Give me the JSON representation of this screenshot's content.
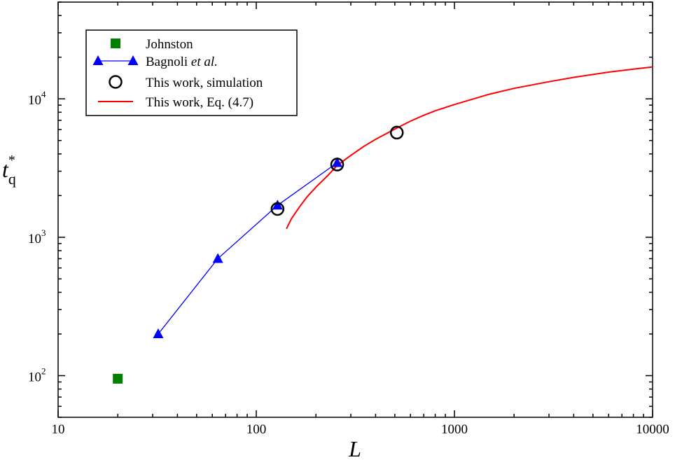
{
  "chart_data": {
    "type": "line",
    "xscale": "log",
    "yscale": "log",
    "xlim": [
      10,
      10000
    ],
    "ylim": [
      50,
      50000
    ],
    "xlabel": "L",
    "ylabel": {
      "main": "t",
      "sub": "q",
      "sup": "*"
    },
    "x_ticks": [
      {
        "value": 10,
        "label": "10"
      },
      {
        "value": 100,
        "label": "100"
      },
      {
        "value": 1000,
        "label": "1000"
      },
      {
        "value": 10000,
        "label": "10000"
      }
    ],
    "y_ticks": [
      {
        "value": 100,
        "base": "10",
        "exp": "2"
      },
      {
        "value": 1000,
        "base": "10",
        "exp": "3"
      },
      {
        "value": 10000,
        "base": "10",
        "exp": "4"
      }
    ],
    "grid": false,
    "legend_position": "top-left",
    "legend": [
      {
        "key": "johnston",
        "parts": [
          {
            "text": "Johnston",
            "italic": false
          }
        ]
      },
      {
        "key": "bagnoli",
        "parts": [
          {
            "text": "Bagnoli ",
            "italic": false
          },
          {
            "text": "et al.",
            "italic": true
          }
        ]
      },
      {
        "key": "sim",
        "parts": [
          {
            "text": "This work, simulation",
            "italic": false
          }
        ]
      },
      {
        "key": "eq",
        "parts": [
          {
            "text": "This work, Eq. (4.7)",
            "italic": false
          }
        ]
      }
    ],
    "series": [
      {
        "key": "johnston",
        "marker": "square",
        "color": "#008000",
        "line": false,
        "points": [
          [
            20,
            95
          ]
        ]
      },
      {
        "key": "bagnoli",
        "marker": "triangle",
        "color": "#0000ff",
        "line": true,
        "points": [
          [
            32,
            200
          ],
          [
            64,
            700
          ],
          [
            128,
            1700
          ],
          [
            256,
            3450
          ]
        ]
      },
      {
        "key": "sim",
        "marker": "circle",
        "color": "#000000",
        "line": false,
        "points": [
          [
            128,
            1600
          ],
          [
            256,
            3350
          ],
          [
            512,
            5700
          ]
        ]
      },
      {
        "key": "eq",
        "marker": "none",
        "color": "#ff0000",
        "line": true,
        "points": [
          [
            142,
            1150
          ],
          [
            150,
            1350
          ],
          [
            165,
            1650
          ],
          [
            180,
            1950
          ],
          [
            200,
            2300
          ],
          [
            230,
            2800
          ],
          [
            256,
            3300
          ],
          [
            300,
            3900
          ],
          [
            350,
            4550
          ],
          [
            400,
            5100
          ],
          [
            512,
            6150
          ],
          [
            600,
            6900
          ],
          [
            700,
            7600
          ],
          [
            800,
            8200
          ],
          [
            1000,
            9100
          ],
          [
            1500,
            10800
          ],
          [
            2000,
            11900
          ],
          [
            3000,
            13300
          ],
          [
            4000,
            14300
          ],
          [
            5000,
            15000
          ],
          [
            6000,
            15600
          ],
          [
            8000,
            16400
          ],
          [
            10000,
            17000
          ]
        ]
      }
    ]
  }
}
